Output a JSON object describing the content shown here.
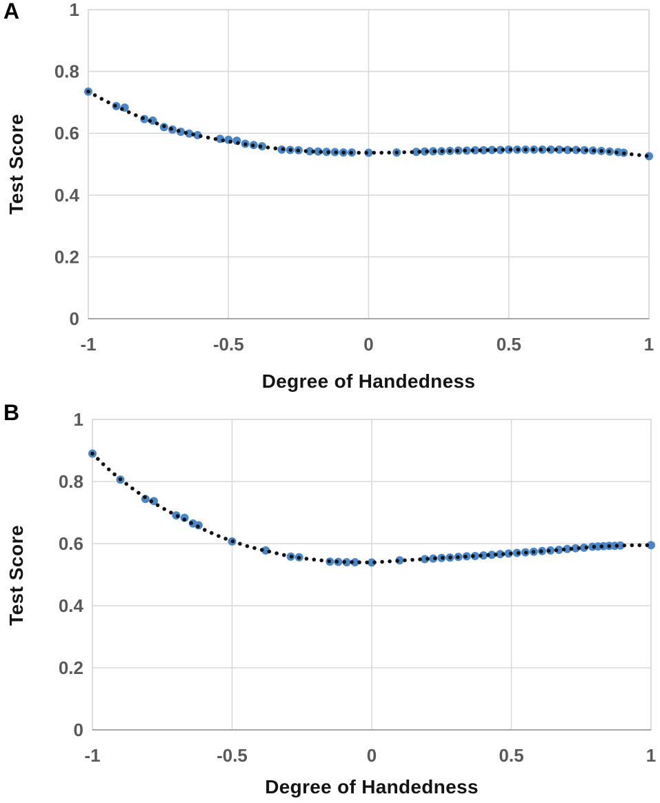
{
  "figure": {
    "panels": [
      {
        "label": "A",
        "xlabel": "Degree of Handedness",
        "ylabel": "Test Score"
      },
      {
        "label": "B",
        "xlabel": "Degree of Handedness",
        "ylabel": "Test Score"
      }
    ]
  },
  "colors": {
    "marker": "#4a85c6",
    "trend": "#121212",
    "grid": "#d9d9d9",
    "axis": "#a6a6a6",
    "tick_text": "#595959",
    "title_text": "#141414"
  },
  "chart_data": [
    {
      "type": "scatter",
      "panel": "A",
      "title": "",
      "xlabel": "Degree of Handedness",
      "ylabel": "Test Score",
      "xlim": [
        -1,
        1
      ],
      "ylim": [
        0,
        1
      ],
      "xticks": [
        -1,
        -0.5,
        0,
        0.5,
        1
      ],
      "yticks": [
        0,
        0.2,
        0.4,
        0.6,
        0.8,
        1
      ],
      "grid": true,
      "legend": "none",
      "marker_shape": "circle",
      "trend_style": "dotted",
      "points": [
        [
          -1.0,
          0.735
        ],
        [
          -0.9,
          0.688
        ],
        [
          -0.87,
          0.683
        ],
        [
          -0.8,
          0.646
        ],
        [
          -0.77,
          0.641
        ],
        [
          -0.73,
          0.62
        ],
        [
          -0.7,
          0.612
        ],
        [
          -0.67,
          0.605
        ],
        [
          -0.64,
          0.599
        ],
        [
          -0.61,
          0.594
        ],
        [
          -0.53,
          0.582
        ],
        [
          -0.5,
          0.579
        ],
        [
          -0.47,
          0.576
        ],
        [
          -0.44,
          0.566
        ],
        [
          -0.41,
          0.562
        ],
        [
          -0.38,
          0.558
        ],
        [
          -0.31,
          0.547
        ],
        [
          -0.28,
          0.546
        ],
        [
          -0.25,
          0.545
        ],
        [
          -0.21,
          0.542
        ],
        [
          -0.18,
          0.541
        ],
        [
          -0.15,
          0.54
        ],
        [
          -0.12,
          0.539
        ],
        [
          -0.09,
          0.538
        ],
        [
          -0.06,
          0.538
        ],
        [
          0.0,
          0.537
        ],
        [
          0.1,
          0.538
        ],
        [
          0.17,
          0.54
        ],
        [
          0.2,
          0.541
        ],
        [
          0.23,
          0.542
        ],
        [
          0.26,
          0.542
        ],
        [
          0.29,
          0.543
        ],
        [
          0.32,
          0.544
        ],
        [
          0.35,
          0.544
        ],
        [
          0.38,
          0.545
        ],
        [
          0.41,
          0.545
        ],
        [
          0.44,
          0.546
        ],
        [
          0.47,
          0.546
        ],
        [
          0.5,
          0.547
        ],
        [
          0.53,
          0.547
        ],
        [
          0.56,
          0.547
        ],
        [
          0.59,
          0.547
        ],
        [
          0.62,
          0.547
        ],
        [
          0.65,
          0.547
        ],
        [
          0.68,
          0.547
        ],
        [
          0.71,
          0.546
        ],
        [
          0.74,
          0.546
        ],
        [
          0.77,
          0.545
        ],
        [
          0.8,
          0.544
        ],
        [
          0.83,
          0.543
        ],
        [
          0.86,
          0.541
        ],
        [
          0.89,
          0.539
        ],
        [
          0.91,
          0.537
        ],
        [
          1.0,
          0.526
        ]
      ],
      "trend": {
        "style": "dotted",
        "anchors": [
          [
            -1,
            0.735
          ],
          [
            -0.95,
            0.71
          ],
          [
            -0.9,
            0.687
          ],
          [
            -0.85,
            0.666
          ],
          [
            -0.8,
            0.647
          ],
          [
            -0.75,
            0.63
          ],
          [
            -0.7,
            0.613
          ],
          [
            -0.65,
            0.601
          ],
          [
            -0.6,
            0.591
          ],
          [
            -0.55,
            0.582
          ],
          [
            -0.5,
            0.574
          ],
          [
            -0.45,
            0.566
          ],
          [
            -0.4,
            0.559
          ],
          [
            -0.35,
            0.553
          ],
          [
            -0.3,
            0.548
          ],
          [
            -0.25,
            0.544
          ],
          [
            -0.2,
            0.541
          ],
          [
            -0.15,
            0.539
          ],
          [
            -0.1,
            0.538
          ],
          [
            -0.05,
            0.537
          ],
          [
            0,
            0.537
          ],
          [
            0.05,
            0.537
          ],
          [
            0.1,
            0.538
          ],
          [
            0.15,
            0.539
          ],
          [
            0.2,
            0.541
          ],
          [
            0.25,
            0.542
          ],
          [
            0.3,
            0.543
          ],
          [
            0.35,
            0.544
          ],
          [
            0.4,
            0.545
          ],
          [
            0.45,
            0.546
          ],
          [
            0.5,
            0.547
          ],
          [
            0.55,
            0.547
          ],
          [
            0.6,
            0.547
          ],
          [
            0.65,
            0.547
          ],
          [
            0.7,
            0.547
          ],
          [
            0.75,
            0.546
          ],
          [
            0.8,
            0.544
          ],
          [
            0.85,
            0.542
          ],
          [
            0.9,
            0.536
          ],
          [
            0.95,
            0.531
          ],
          [
            1,
            0.526
          ]
        ]
      }
    },
    {
      "type": "scatter",
      "panel": "B",
      "title": "",
      "xlabel": "Degree of Handedness",
      "ylabel": "Test Score",
      "xlim": [
        -1,
        1
      ],
      "ylim": [
        0,
        1
      ],
      "xticks": [
        -1,
        -0.5,
        0,
        0.5,
        1
      ],
      "yticks": [
        0,
        0.2,
        0.4,
        0.6,
        0.8,
        1
      ],
      "grid": true,
      "legend": "none",
      "marker_shape": "circle",
      "trend_style": "dotted",
      "points": [
        [
          -1.0,
          0.89
        ],
        [
          -0.9,
          0.806
        ],
        [
          -0.81,
          0.744
        ],
        [
          -0.78,
          0.737
        ],
        [
          -0.7,
          0.691
        ],
        [
          -0.67,
          0.683
        ],
        [
          -0.64,
          0.665
        ],
        [
          -0.62,
          0.659
        ],
        [
          -0.5,
          0.607
        ],
        [
          -0.38,
          0.578
        ],
        [
          -0.29,
          0.558
        ],
        [
          -0.26,
          0.556
        ],
        [
          -0.15,
          0.542
        ],
        [
          -0.12,
          0.541
        ],
        [
          -0.09,
          0.54
        ],
        [
          -0.06,
          0.54
        ],
        [
          0.0,
          0.539
        ],
        [
          0.1,
          0.546
        ],
        [
          0.19,
          0.55
        ],
        [
          0.22,
          0.552
        ],
        [
          0.25,
          0.554
        ],
        [
          0.28,
          0.555
        ],
        [
          0.31,
          0.557
        ],
        [
          0.34,
          0.559
        ],
        [
          0.37,
          0.56
        ],
        [
          0.4,
          0.562
        ],
        [
          0.43,
          0.564
        ],
        [
          0.46,
          0.566
        ],
        [
          0.49,
          0.568
        ],
        [
          0.52,
          0.57
        ],
        [
          0.55,
          0.572
        ],
        [
          0.58,
          0.574
        ],
        [
          0.61,
          0.576
        ],
        [
          0.64,
          0.578
        ],
        [
          0.67,
          0.58
        ],
        [
          0.7,
          0.583
        ],
        [
          0.73,
          0.585
        ],
        [
          0.76,
          0.587
        ],
        [
          0.79,
          0.59
        ],
        [
          0.81,
          0.591
        ],
        [
          0.83,
          0.592
        ],
        [
          0.85,
          0.593
        ],
        [
          0.87,
          0.593
        ],
        [
          0.89,
          0.594
        ],
        [
          1.0,
          0.595
        ]
      ],
      "trend": {
        "style": "dotted",
        "anchors": [
          [
            -1,
            0.89
          ],
          [
            -0.95,
            0.846
          ],
          [
            -0.9,
            0.807
          ],
          [
            -0.85,
            0.773
          ],
          [
            -0.8,
            0.742
          ],
          [
            -0.75,
            0.715
          ],
          [
            -0.7,
            0.691
          ],
          [
            -0.65,
            0.668
          ],
          [
            -0.6,
            0.645
          ],
          [
            -0.55,
            0.625
          ],
          [
            -0.5,
            0.608
          ],
          [
            -0.45,
            0.593
          ],
          [
            -0.4,
            0.581
          ],
          [
            -0.35,
            0.571
          ],
          [
            -0.3,
            0.56
          ],
          [
            -0.25,
            0.553
          ],
          [
            -0.2,
            0.548
          ],
          [
            -0.15,
            0.543
          ],
          [
            -0.1,
            0.541
          ],
          [
            -0.05,
            0.54
          ],
          [
            0,
            0.539
          ],
          [
            0.05,
            0.542
          ],
          [
            0.1,
            0.545
          ],
          [
            0.15,
            0.548
          ],
          [
            0.2,
            0.551
          ],
          [
            0.25,
            0.554
          ],
          [
            0.3,
            0.556
          ],
          [
            0.35,
            0.559
          ],
          [
            0.4,
            0.562
          ],
          [
            0.45,
            0.565
          ],
          [
            0.5,
            0.568
          ],
          [
            0.55,
            0.571
          ],
          [
            0.6,
            0.575
          ],
          [
            0.65,
            0.578
          ],
          [
            0.7,
            0.582
          ],
          [
            0.75,
            0.586
          ],
          [
            0.8,
            0.59
          ],
          [
            0.85,
            0.592
          ],
          [
            0.9,
            0.594
          ],
          [
            0.95,
            0.595
          ],
          [
            1,
            0.595
          ]
        ]
      }
    }
  ]
}
